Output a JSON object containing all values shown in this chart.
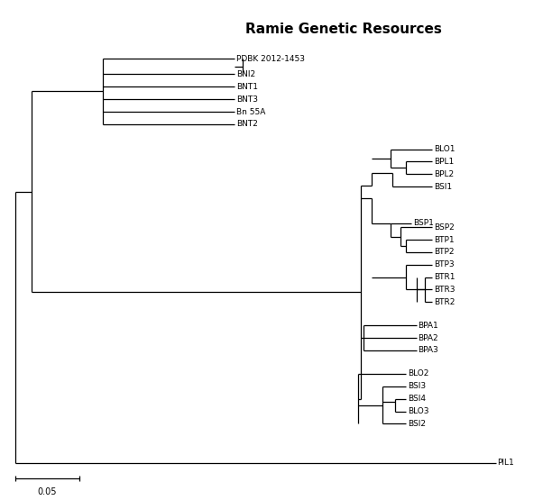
{
  "title": "Ramie Genetic Resources",
  "title_fontsize": 11,
  "scale_bar_label": "0.05",
  "bg": "#ffffff",
  "lc": "#000000",
  "lw": 0.9,
  "fs": 6.5,
  "taxa_order_bottom_to_top": [
    "PIL1",
    "BSI2",
    "BLO3",
    "BSI4",
    "BSI3",
    "BLO2",
    "BPA3",
    "BPA2",
    "BPA1",
    "BTR2",
    "BTR3",
    "BTR1",
    "BTP3",
    "BTP2",
    "BTP1",
    "BSP2",
    "BSP1",
    "BSI1",
    "BPL2",
    "BPL1",
    "BLO1",
    "BNT2",
    "Bn 55A",
    "BNT3",
    "BNT1",
    "BNI2",
    "PDBK 2012-1453"
  ]
}
